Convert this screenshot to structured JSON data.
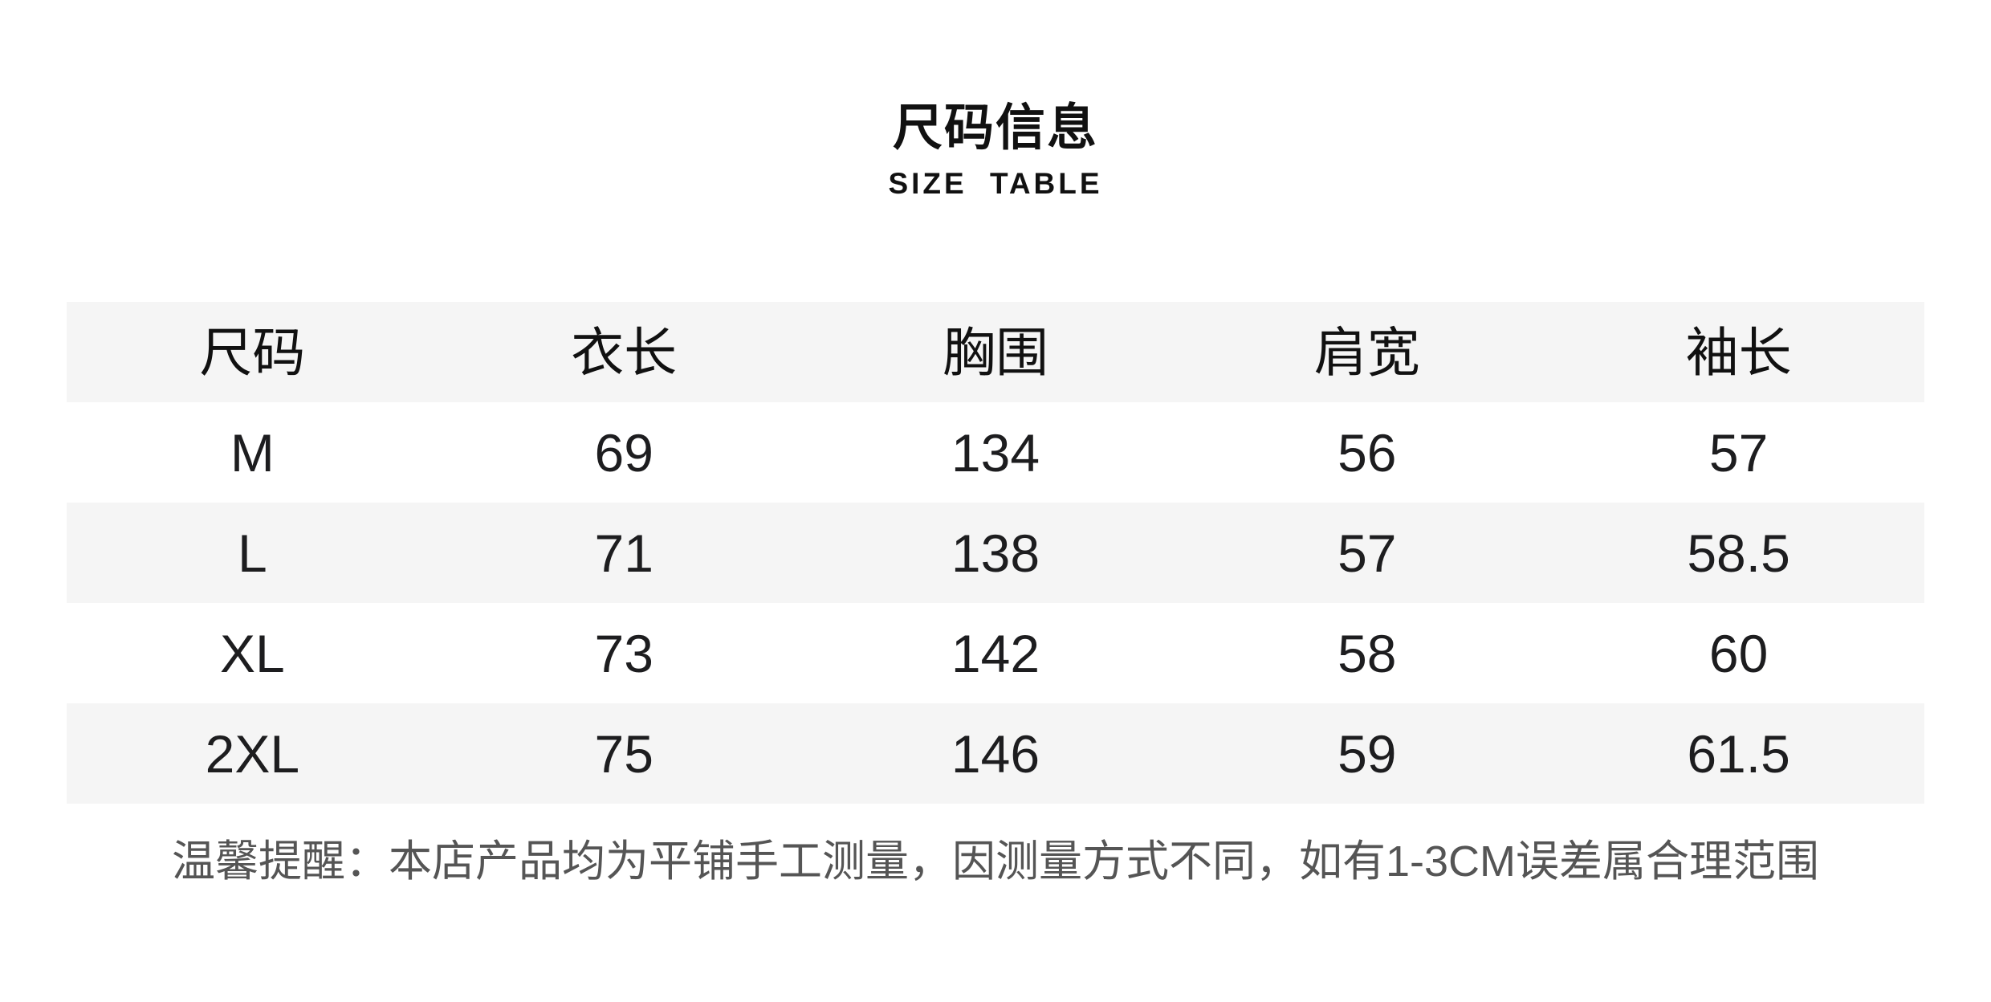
{
  "header": {
    "title": "尺码信息",
    "subtitle": "SIZE TABLE"
  },
  "size_table": {
    "columns": [
      "尺码",
      "衣长",
      "胸围",
      "肩宽",
      "袖长"
    ],
    "rows": [
      [
        "M",
        "69",
        "134",
        "56",
        "57"
      ],
      [
        "L",
        "71",
        "138",
        "57",
        "58.5"
      ],
      [
        "XL",
        "73",
        "142",
        "58",
        "60"
      ],
      [
        "2XL",
        "75",
        "146",
        "59",
        "61.5"
      ]
    ]
  },
  "footer": {
    "note": "温馨提醒：本店产品均为平铺手工测量，因测量方式不同，如有1-3CM误差属合理范围"
  },
  "colors": {
    "background": "#ffffff",
    "stripe": "#f5f5f5",
    "title_text": "#111111",
    "table_text": "#1d1d1f",
    "note_text": "#555555"
  }
}
